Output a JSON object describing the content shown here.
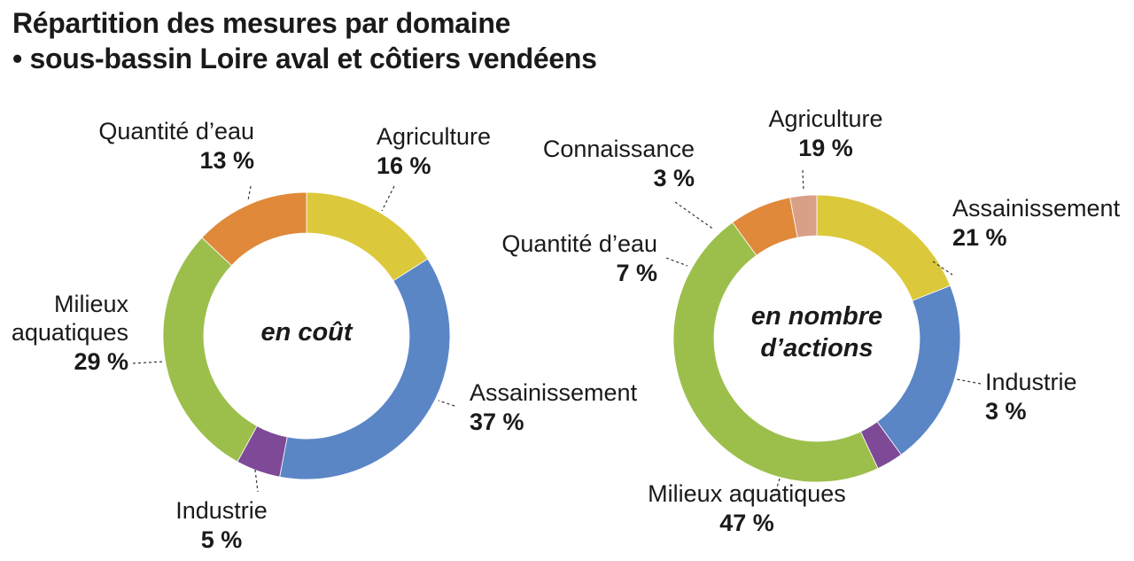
{
  "title": {
    "line1": "Répartition des mesures par domaine",
    "line2": "• sous-bassin Loire aval et côtiers vendéens"
  },
  "colors": {
    "agriculture": "#dcc93b",
    "assainissement": "#5a86c6",
    "industrie": "#7e4a98",
    "milieux": "#9cbf4c",
    "quantite": "#e0893a",
    "connaissance": "#d9a088"
  },
  "chart_data": [
    {
      "type": "pie",
      "donut": true,
      "center_label": [
        "en coût"
      ],
      "slices": [
        {
          "key": "agriculture",
          "label": "Agriculture",
          "value": 16,
          "value_label": "16 %"
        },
        {
          "key": "assainissement",
          "label": "Assainissement",
          "value": 37,
          "value_label": "37 %"
        },
        {
          "key": "industrie",
          "label": "Industrie",
          "value": 5,
          "value_label": "5 %"
        },
        {
          "key": "milieux",
          "label": "Milieux\naquatiques",
          "value": 29,
          "value_label": "29 %"
        },
        {
          "key": "quantite",
          "label": "Quantité d’eau",
          "value": 13,
          "value_label": "13 %"
        }
      ]
    },
    {
      "type": "pie",
      "donut": true,
      "center_label": [
        "en nombre",
        "d’actions"
      ],
      "slices": [
        {
          "key": "agriculture",
          "label": "Agriculture",
          "value": 19,
          "value_label": "19 %"
        },
        {
          "key": "assainissement",
          "label": "Assainissement",
          "value": 21,
          "value_label": "21 %"
        },
        {
          "key": "industrie",
          "label": "Industrie",
          "value": 3,
          "value_label": "3 %"
        },
        {
          "key": "milieux",
          "label": "Milieux aquatiques",
          "value": 47,
          "value_label": "47 %"
        },
        {
          "key": "quantite",
          "label": "Quantité d’eau",
          "value": 7,
          "value_label": "7 %"
        },
        {
          "key": "connaissance",
          "label": "Connaissance",
          "value": 3,
          "value_label": "3 %"
        }
      ]
    }
  ]
}
